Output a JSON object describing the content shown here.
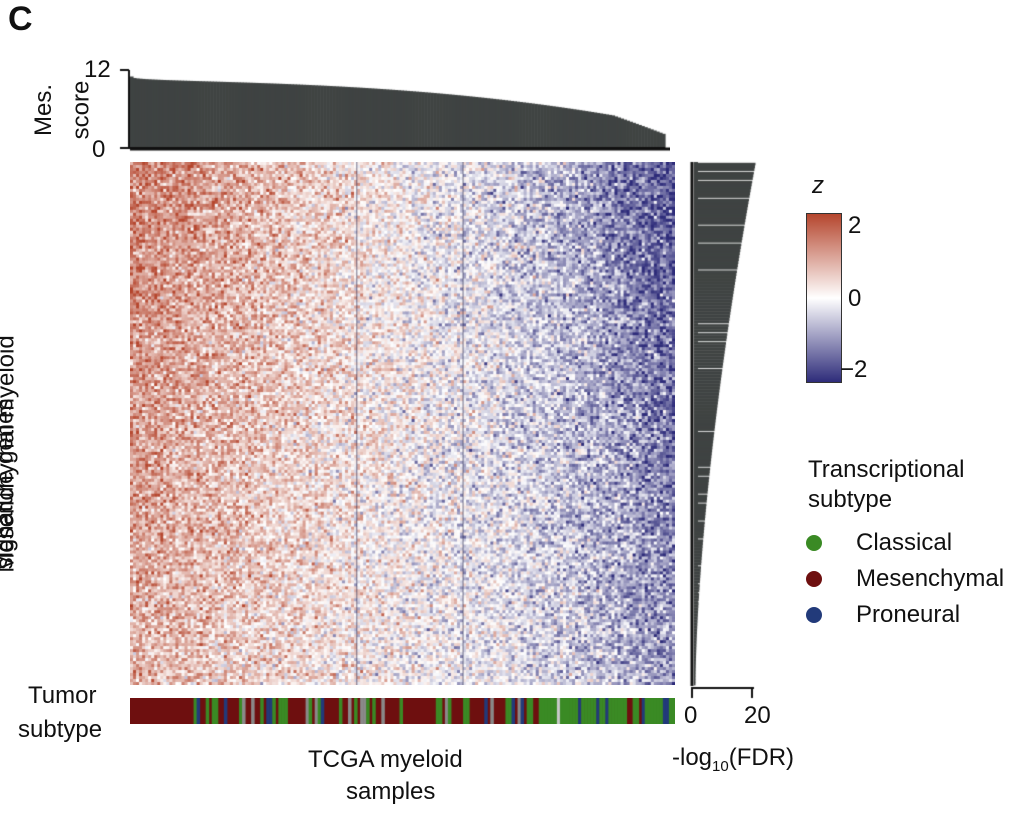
{
  "panel_label": "C",
  "colors": {
    "bar_fill": "#3f4342",
    "heat_high": "#b5462e",
    "heat_mid": "#ffffff",
    "heat_low": "#2e2c7a",
    "classical": "#3a8a24",
    "mesenchymal": "#6e0f0f",
    "proneural": "#223a7a"
  },
  "chart_data": [
    {
      "type": "bar",
      "name": "mesenchymal-score-barplot",
      "ylabel": [
        "Mes.",
        "score"
      ],
      "yticks": [
        "12",
        "0"
      ],
      "ylim": [
        0,
        12
      ],
      "n_samples": 180,
      "score_max": 11.0,
      "score_min": 1.6,
      "sorted": "descending"
    },
    {
      "type": "heatmap",
      "name": "mesenchymal-myeloid-signature-heatmap",
      "ylabel": [
        "Mesenchymal myeloid",
        "signature genes"
      ],
      "xlabel": [
        "TCGA myeloid",
        "samples"
      ],
      "n_rows": 175,
      "n_cols": 180,
      "colorbar": {
        "title": "z",
        "ticks": [
          "2",
          "0",
          "−2"
        ],
        "range": [
          -2.5,
          2.5
        ]
      }
    },
    {
      "type": "bar",
      "orientation": "horizontal",
      "name": "fdr-barplot",
      "xlabel_prefix": "-log",
      "xlabel_sub": "10",
      "xlabel_suffix": "(FDR)",
      "xticks": [
        "0",
        "20"
      ],
      "xlim": [
        0,
        20
      ],
      "n_genes": 175,
      "value_max": 20.5,
      "value_min": 0.5
    },
    {
      "type": "table",
      "name": "tumor-subtype-annotation",
      "label": [
        "Tumor",
        "subtype"
      ],
      "legend_title": [
        "Transcriptional",
        "subtype"
      ],
      "categories": [
        "Classical",
        "Mesenchymal",
        "Proneural"
      ]
    }
  ]
}
